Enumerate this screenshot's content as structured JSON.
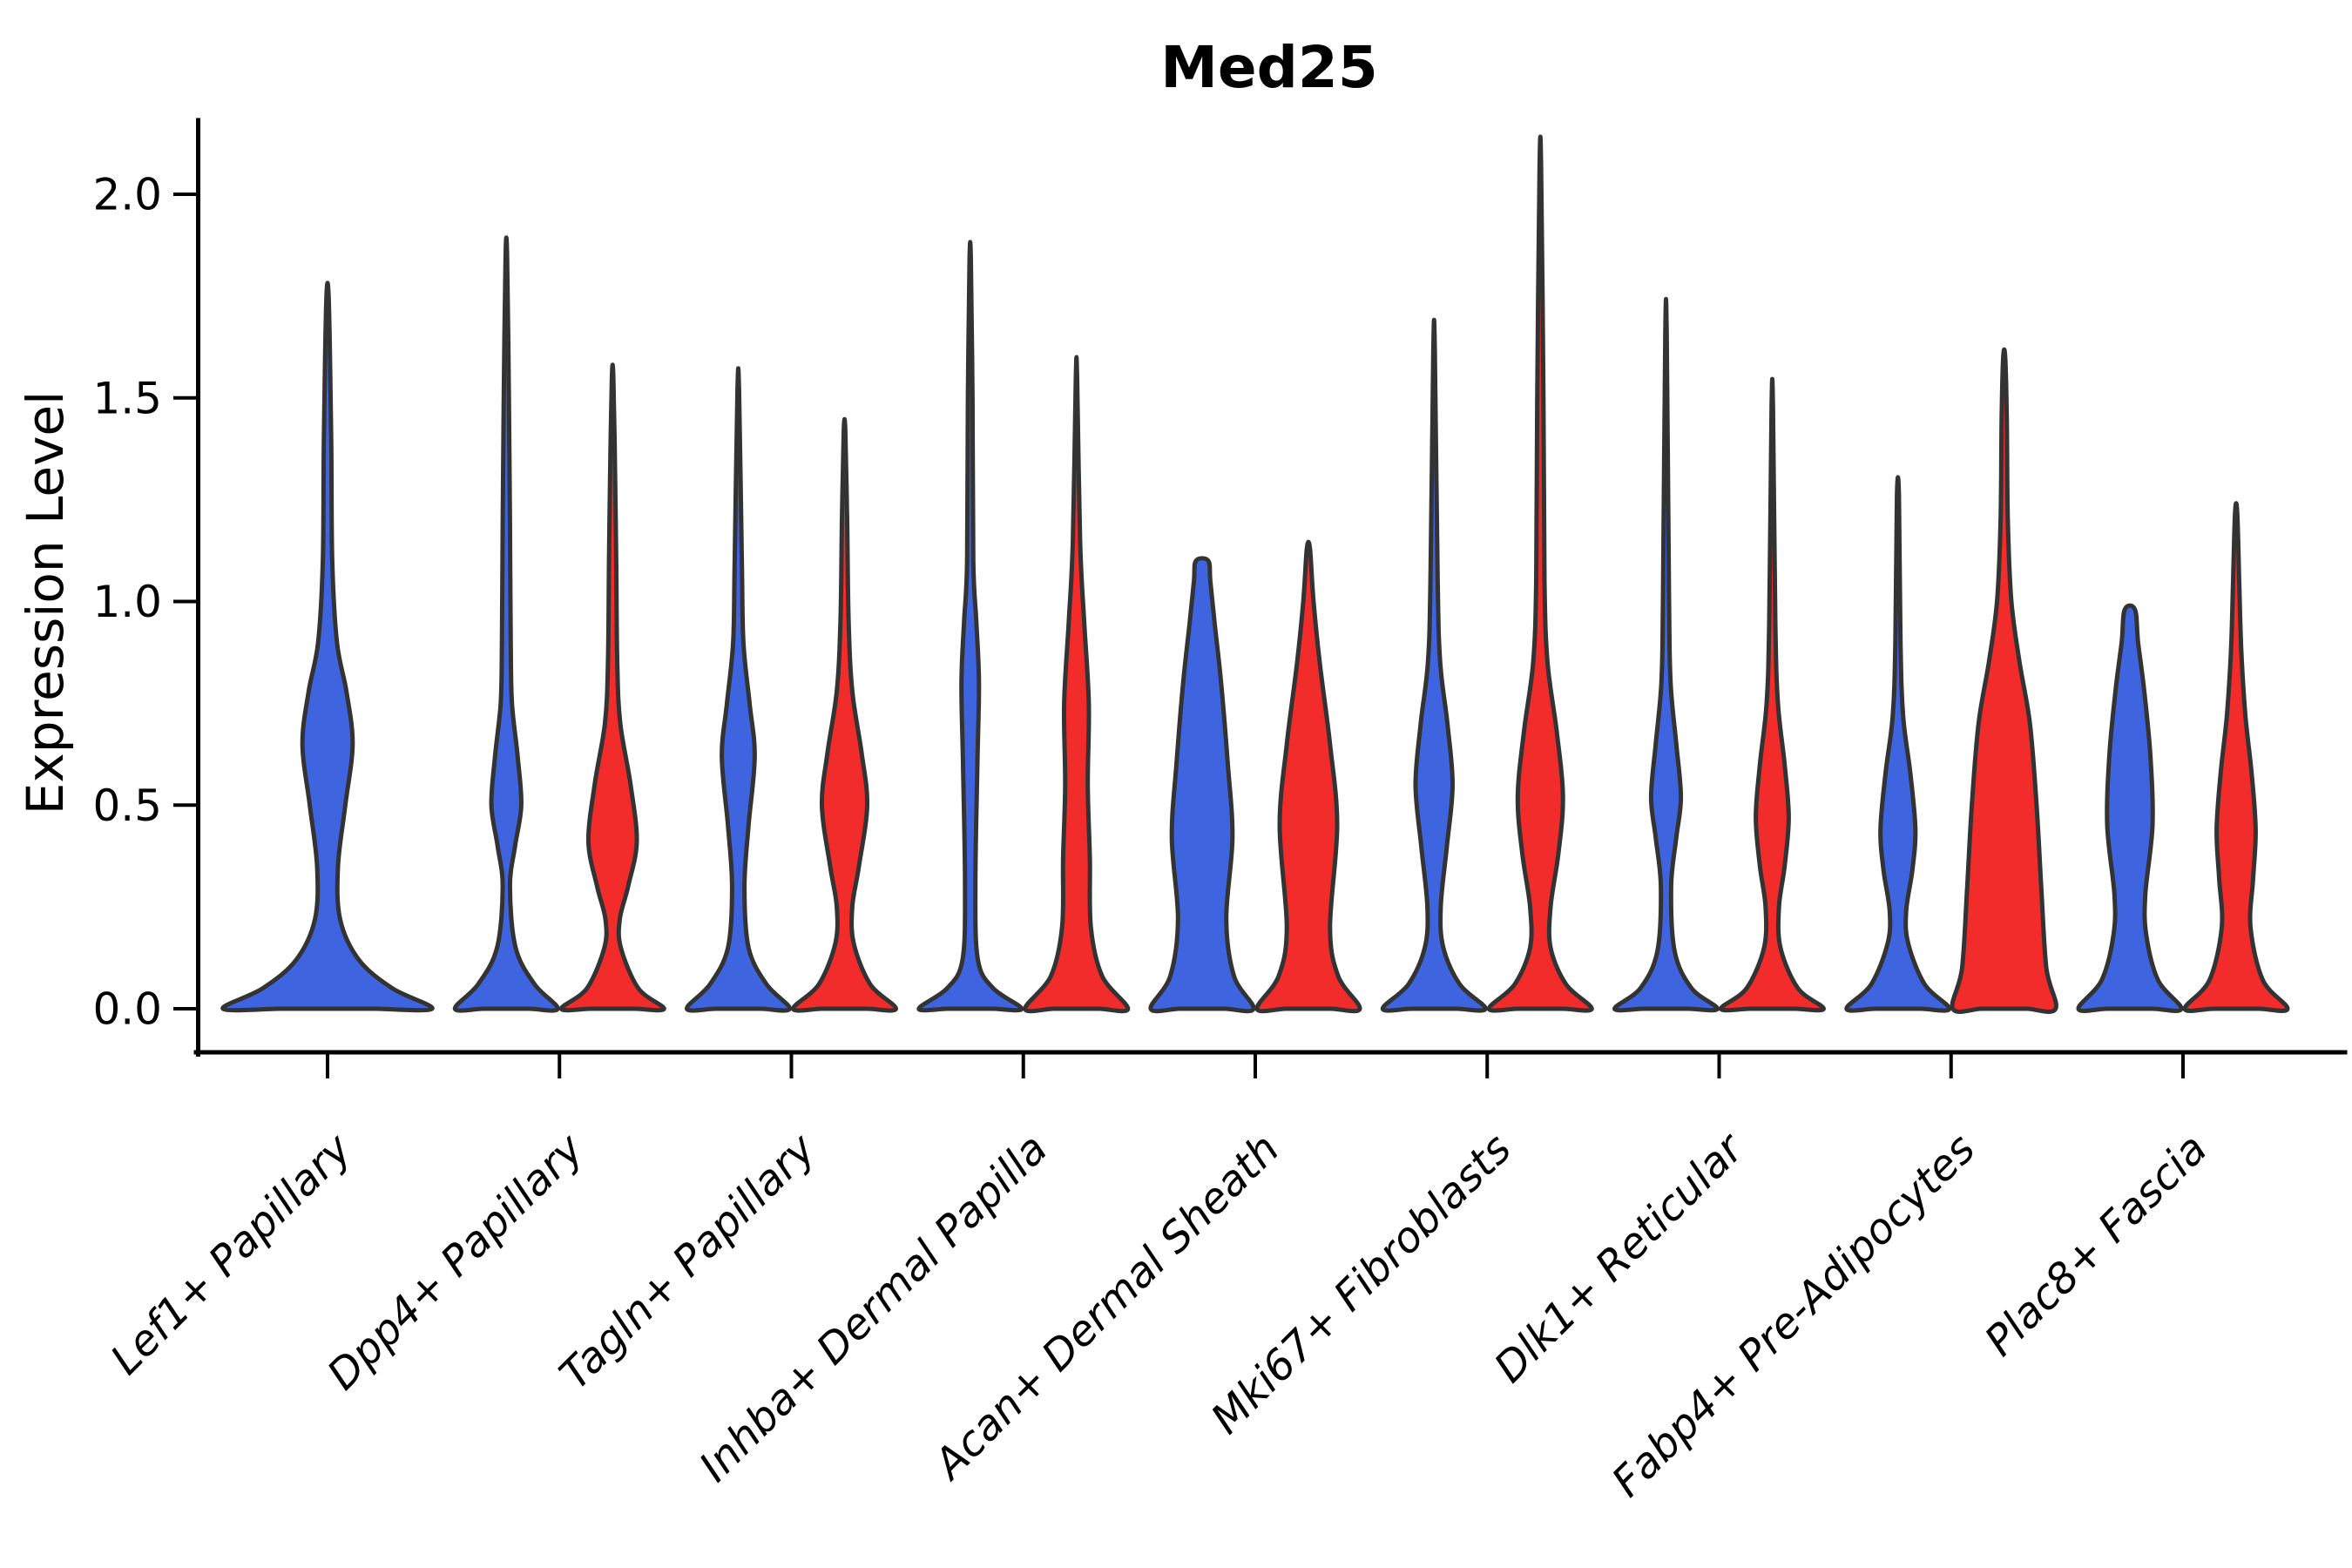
{
  "title": "Med25",
  "y_axis": {
    "label": "Expression Level",
    "tick_labels": [
      "0.0",
      "0.5",
      "1.0",
      "1.5",
      "2.0"
    ]
  },
  "colors": {
    "group_blue": "#3F64E0",
    "group_red": "#F22B2B",
    "outline": "#333333",
    "axis": "#000000"
  },
  "chart_data": {
    "type": "violin",
    "title": "Med25",
    "xlabel": "",
    "ylabel": "Expression Level",
    "ylim": [
      0,
      2.18
    ],
    "yticks": [
      0,
      0.5,
      1.0,
      1.5,
      2.0
    ],
    "grid": false,
    "legend": "none",
    "categories": [
      "Lef1+ Papillary",
      "Dpp4+ Papillary",
      "Tagln+ Papillary",
      "Inhba+ Dermal Papilla",
      "Acan+ Dermal Sheath",
      "Mki67+ Fibroblasts",
      "Dlk1+ Reticular",
      "Fabp4+ Pre-Adipocytes",
      "Plac8+ Fascia"
    ],
    "series": [
      {
        "name": "group-blue",
        "color_key": "group_blue",
        "violins": [
          {
            "max": 1.74,
            "single": true,
            "profile": [
              [
                0,
                1.0
              ],
              [
                0.05,
                0.62
              ],
              [
                0.12,
                0.3
              ],
              [
                0.22,
                0.12
              ],
              [
                0.35,
                0.1
              ],
              [
                0.5,
                0.17
              ],
              [
                0.65,
                0.24
              ],
              [
                0.78,
                0.18
              ],
              [
                0.9,
                0.09
              ],
              [
                1.1,
                0.045
              ],
              [
                1.4,
                0.035
              ],
              [
                1.74,
                0.012
              ]
            ]
          },
          {
            "max": 1.85,
            "profile": [
              [
                0,
                1.0
              ],
              [
                0.06,
                0.55
              ],
              [
                0.15,
                0.18
              ],
              [
                0.3,
                0.07
              ],
              [
                0.4,
                0.17
              ],
              [
                0.5,
                0.29
              ],
              [
                0.62,
                0.22
              ],
              [
                0.75,
                0.11
              ],
              [
                0.9,
                0.085
              ],
              [
                1.2,
                0.07
              ],
              [
                1.5,
                0.05
              ],
              [
                1.85,
                0.015
              ]
            ]
          },
          {
            "max": 1.52,
            "profile": [
              [
                0,
                1.0
              ],
              [
                0.06,
                0.55
              ],
              [
                0.15,
                0.2
              ],
              [
                0.3,
                0.12
              ],
              [
                0.45,
                0.2
              ],
              [
                0.62,
                0.32
              ],
              [
                0.75,
                0.22
              ],
              [
                0.9,
                0.1
              ],
              [
                1.1,
                0.07
              ],
              [
                1.52,
                0.015
              ]
            ]
          },
          {
            "max": 1.84,
            "profile": [
              [
                0,
                1.0
              ],
              [
                0.05,
                0.45
              ],
              [
                0.12,
                0.15
              ],
              [
                0.3,
                0.1
              ],
              [
                0.6,
                0.14
              ],
              [
                0.8,
                0.17
              ],
              [
                0.95,
                0.12
              ],
              [
                1.1,
                0.06
              ],
              [
                1.5,
                0.045
              ],
              [
                1.84,
                0.012
              ]
            ]
          },
          {
            "max": 1.1,
            "profile": [
              [
                0,
                1.0
              ],
              [
                0.08,
                0.62
              ],
              [
                0.22,
                0.47
              ],
              [
                0.42,
                0.59
              ],
              [
                0.6,
                0.5
              ],
              [
                0.8,
                0.37
              ],
              [
                0.95,
                0.24
              ],
              [
                1.05,
                0.16
              ],
              [
                1.1,
                0.12
              ]
            ]
          },
          {
            "max": 1.62,
            "profile": [
              [
                0,
                1.0
              ],
              [
                0.06,
                0.5
              ],
              [
                0.15,
                0.18
              ],
              [
                0.25,
                0.13
              ],
              [
                0.4,
                0.25
              ],
              [
                0.55,
                0.36
              ],
              [
                0.7,
                0.26
              ],
              [
                0.85,
                0.12
              ],
              [
                1.05,
                0.07
              ],
              [
                1.62,
                0.015
              ]
            ]
          },
          {
            "max": 1.66,
            "profile": [
              [
                0,
                1.0
              ],
              [
                0.05,
                0.5
              ],
              [
                0.14,
                0.17
              ],
              [
                0.3,
                0.1
              ],
              [
                0.42,
                0.2
              ],
              [
                0.52,
                0.29
              ],
              [
                0.65,
                0.2
              ],
              [
                0.8,
                0.09
              ],
              [
                1.0,
                0.06
              ],
              [
                1.66,
                0.013
              ]
            ]
          },
          {
            "max": 1.26,
            "profile": [
              [
                0,
                1.0
              ],
              [
                0.06,
                0.52
              ],
              [
                0.16,
                0.2
              ],
              [
                0.24,
                0.16
              ],
              [
                0.34,
                0.28
              ],
              [
                0.44,
                0.34
              ],
              [
                0.58,
                0.24
              ],
              [
                0.72,
                0.1
              ],
              [
                0.9,
                0.05
              ],
              [
                1.26,
                0.02
              ]
            ]
          },
          {
            "max": 0.98,
            "profile": [
              [
                0,
                1.0
              ],
              [
                0.07,
                0.55
              ],
              [
                0.18,
                0.32
              ],
              [
                0.28,
                0.3
              ],
              [
                0.45,
                0.44
              ],
              [
                0.62,
                0.4
              ],
              [
                0.78,
                0.28
              ],
              [
                0.9,
                0.16
              ],
              [
                0.98,
                0.1
              ]
            ]
          }
        ]
      },
      {
        "name": "group-red",
        "color_key": "group_red",
        "violins": [
          null,
          {
            "max": 1.55,
            "profile": [
              [
                0,
                1.0
              ],
              [
                0.05,
                0.5
              ],
              [
                0.15,
                0.16
              ],
              [
                0.22,
                0.14
              ],
              [
                0.3,
                0.3
              ],
              [
                0.41,
                0.47
              ],
              [
                0.55,
                0.35
              ],
              [
                0.7,
                0.15
              ],
              [
                0.85,
                0.09
              ],
              [
                1.1,
                0.07
              ],
              [
                1.3,
                0.05
              ],
              [
                1.55,
                0.015
              ]
            ]
          },
          {
            "max": 1.42,
            "profile": [
              [
                0,
                1.0
              ],
              [
                0.06,
                0.5
              ],
              [
                0.16,
                0.18
              ],
              [
                0.25,
                0.15
              ],
              [
                0.35,
                0.28
              ],
              [
                0.5,
                0.44
              ],
              [
                0.63,
                0.33
              ],
              [
                0.78,
                0.15
              ],
              [
                0.95,
                0.08
              ],
              [
                1.2,
                0.05
              ],
              [
                1.42,
                0.015
              ]
            ]
          },
          {
            "max": 1.55,
            "profile": [
              [
                0,
                1.0
              ],
              [
                0.08,
                0.5
              ],
              [
                0.2,
                0.28
              ],
              [
                0.37,
                0.26
              ],
              [
                0.55,
                0.22
              ],
              [
                0.75,
                0.24
              ],
              [
                0.95,
                0.15
              ],
              [
                1.15,
                0.07
              ],
              [
                1.55,
                0.012
              ]
            ]
          },
          {
            "max": 1.13,
            "profile": [
              [
                0,
                1.0
              ],
              [
                0.08,
                0.58
              ],
              [
                0.2,
                0.42
              ],
              [
                0.45,
                0.56
              ],
              [
                0.65,
                0.42
              ],
              [
                0.85,
                0.22
              ],
              [
                1.0,
                0.1
              ],
              [
                1.13,
                0.03
              ]
            ]
          },
          {
            "max": 2.07,
            "profile": [
              [
                0,
                1.0
              ],
              [
                0.06,
                0.5
              ],
              [
                0.15,
                0.2
              ],
              [
                0.25,
                0.2
              ],
              [
                0.38,
                0.35
              ],
              [
                0.52,
                0.44
              ],
              [
                0.68,
                0.32
              ],
              [
                0.85,
                0.14
              ],
              [
                1.05,
                0.08
              ],
              [
                1.5,
                0.06
              ],
              [
                2.07,
                0.015
              ]
            ]
          },
          {
            "max": 1.48,
            "profile": [
              [
                0,
                1.0
              ],
              [
                0.05,
                0.5
              ],
              [
                0.15,
                0.16
              ],
              [
                0.25,
                0.13
              ],
              [
                0.35,
                0.24
              ],
              [
                0.47,
                0.32
              ],
              [
                0.6,
                0.24
              ],
              [
                0.75,
                0.11
              ],
              [
                0.95,
                0.06
              ],
              [
                1.48,
                0.013
              ]
            ]
          },
          {
            "max": 1.6,
            "profile": [
              [
                0,
                1.0
              ],
              [
                0.1,
                0.82
              ],
              [
                0.3,
                0.72
              ],
              [
                0.5,
                0.63
              ],
              [
                0.7,
                0.5
              ],
              [
                0.85,
                0.3
              ],
              [
                1.0,
                0.14
              ],
              [
                1.2,
                0.07
              ],
              [
                1.45,
                0.05
              ],
              [
                1.6,
                0.02
              ]
            ]
          },
          {
            "max": 1.22,
            "profile": [
              [
                0,
                1.0
              ],
              [
                0.07,
                0.52
              ],
              [
                0.2,
                0.28
              ],
              [
                0.32,
                0.33
              ],
              [
                0.44,
                0.38
              ],
              [
                0.58,
                0.3
              ],
              [
                0.72,
                0.18
              ],
              [
                0.88,
                0.1
              ],
              [
                1.05,
                0.06
              ],
              [
                1.22,
                0.02
              ]
            ]
          }
        ]
      }
    ]
  }
}
